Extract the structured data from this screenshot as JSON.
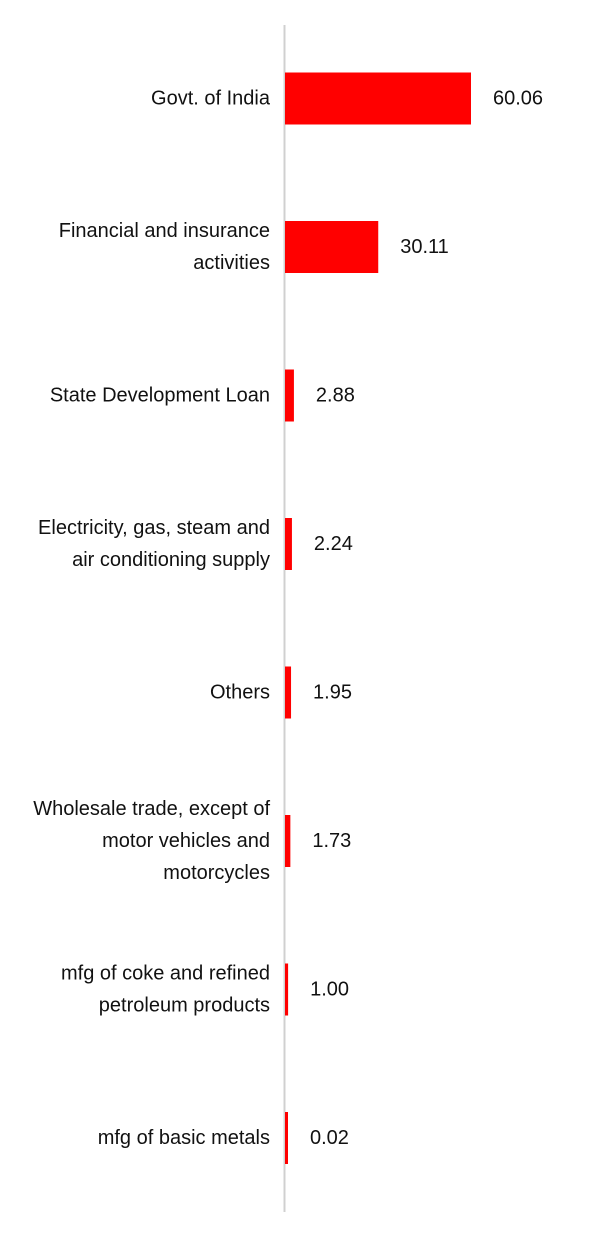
{
  "chart_data": {
    "type": "bar",
    "orientation": "horizontal",
    "categories": [
      "Govt. of India",
      "Financial and insurance activities",
      "State Development Loan",
      "Electricity, gas, steam and air conditioning supply",
      "Others",
      "Wholesale trade, except of motor vehicles and motorcycles",
      "mfg of coke and refined petroleum products",
      "mfg of basic metals"
    ],
    "category_lines": [
      [
        "Govt. of India"
      ],
      [
        "Financial and insurance",
        "activities"
      ],
      [
        "State Development Loan"
      ],
      [
        "Electricity, gas, steam and",
        "air conditioning supply"
      ],
      [
        "Others"
      ],
      [
        "Wholesale trade, except of",
        "motor vehicles and",
        "motorcycles"
      ],
      [
        "mfg of coke and refined",
        "petroleum products"
      ],
      [
        "mfg of basic metals"
      ]
    ],
    "values": [
      60.06,
      30.11,
      2.88,
      2.24,
      1.95,
      1.73,
      1.0,
      0.02
    ],
    "value_labels": [
      "60.06",
      "30.11",
      "2.88",
      "2.24",
      "1.95",
      "1.73",
      "1.00",
      "0.02"
    ],
    "bar_color": "#ff0000",
    "axis_color": "#d0d0d0",
    "xlim": [
      0,
      60.06
    ],
    "grid": false,
    "legend": "none",
    "title": "",
    "xlabel": "",
    "ylabel": ""
  }
}
